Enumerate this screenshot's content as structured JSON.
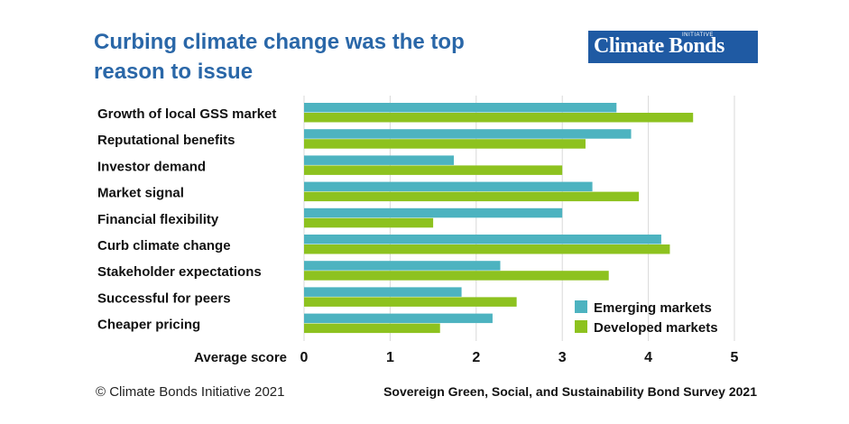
{
  "title": "Curbing climate change was the top reason to issue",
  "logo": {
    "main": "Climate Bonds",
    "sup": "INITIATIVE"
  },
  "footer": {
    "copyright": "© Climate Bonds Initiative 2021",
    "source": "Sovereign Green, Social, and Sustainability Bond Survey 2021"
  },
  "colors": {
    "emerging": "#4db3c0",
    "developed": "#8dc21f",
    "grid": "#d9d9d9",
    "title": "#2a67a8"
  },
  "chart_data": {
    "type": "bar",
    "orientation": "horizontal",
    "categories": [
      "Growth of local GSS market",
      "Reputational benefits",
      "Investor demand",
      "Market signal",
      "Financial flexibility",
      "Curb climate change",
      "Stakeholder expectations",
      "Successful for peers",
      "Cheaper pricing"
    ],
    "series": [
      {
        "name": "Emerging markets",
        "values": [
          3.63,
          3.8,
          1.74,
          3.35,
          3.0,
          4.15,
          2.28,
          1.83,
          2.19
        ]
      },
      {
        "name": "Developed markets",
        "values": [
          4.52,
          3.27,
          3.0,
          3.89,
          1.5,
          4.25,
          3.54,
          2.47,
          1.58
        ]
      }
    ],
    "xlabel": "Average score",
    "xlim": [
      0,
      5
    ],
    "xticks": [
      "0",
      "1",
      "2",
      "3",
      "4",
      "5"
    ],
    "grid": true,
    "legend": "bottom-right"
  }
}
